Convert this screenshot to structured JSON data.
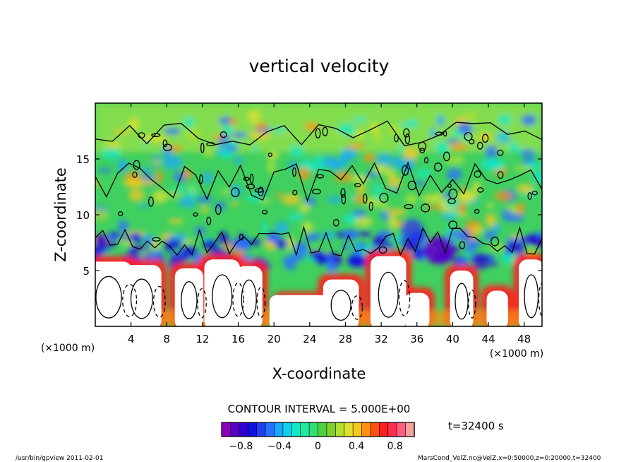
{
  "chart_data": {
    "type": "heatmap",
    "title": "vertical velocity",
    "xlabel": "X-coordinate",
    "ylabel": "Z-coordinate",
    "x_unit": "(×1000 m)",
    "y_unit": "(×1000 m)",
    "xlim": [
      0,
      50
    ],
    "ylim": [
      0,
      20
    ],
    "x_ticks": [
      4,
      8,
      12,
      16,
      20,
      24,
      28,
      32,
      36,
      40,
      44,
      48
    ],
    "y_ticks": [
      5,
      10,
      15
    ],
    "contour_interval_text": "CONTOUR INTERVAL = 5.000E+00",
    "time_text": "t=32400 s",
    "colorbar": {
      "range": [
        -1.0,
        1.0
      ],
      "tick_values": [
        -0.8,
        -0.4,
        0,
        0.4,
        0.8
      ],
      "tick_labels": [
        "−0.8",
        "−0.4",
        "0",
        "0.4",
        "0.8"
      ],
      "colors": [
        "#8a00b8",
        "#5a00c8",
        "#3000d0",
        "#1010e0",
        "#2040f0",
        "#2a70ff",
        "#18a8ff",
        "#10d0f0",
        "#10e8c8",
        "#20e8a0",
        "#30e070",
        "#50d040",
        "#80d030",
        "#b0e030",
        "#e0e030",
        "#f8c820",
        "#ff9010",
        "#ff5010",
        "#ff2020",
        "#f83050",
        "#ff6080",
        "#f8a0a0"
      ]
    },
    "fields": {
      "background": "#40d060",
      "upper_layer": "#b8e840"
    }
  },
  "footer": {
    "left": "/usr/bin/gpview   2011-02-01",
    "right": "MarsCond_VelZ.nc@VelZ,x=0:50000,z=0:20000,t=32400"
  }
}
